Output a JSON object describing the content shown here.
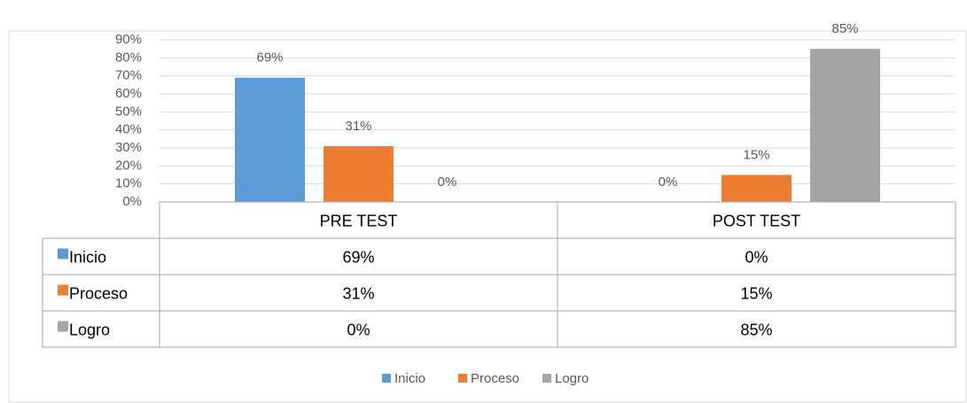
{
  "chart_data": {
    "type": "bar",
    "categories": [
      "PRE TEST",
      "POST TEST"
    ],
    "series": [
      {
        "name": "Inicio",
        "color": "#5b9bd5",
        "values": [
          69,
          0
        ],
        "value_labels": [
          "69%",
          "0%"
        ]
      },
      {
        "name": "Proceso",
        "color": "#ed7d31",
        "values": [
          31,
          15
        ],
        "value_labels": [
          "31%",
          "15%"
        ]
      },
      {
        "name": "Logro",
        "color": "#a5a5a5",
        "values": [
          0,
          85
        ],
        "value_labels": [
          "0%",
          "85%"
        ]
      }
    ],
    "ylim": [
      0,
      90
    ],
    "yticks": [
      {
        "value": 0,
        "label": "0%"
      },
      {
        "value": 10,
        "label": "10%"
      },
      {
        "value": 20,
        "label": "20%"
      },
      {
        "value": 30,
        "label": "30%"
      },
      {
        "value": 40,
        "label": "40%"
      },
      {
        "value": 50,
        "label": "50%"
      },
      {
        "value": 60,
        "label": "60%"
      },
      {
        "value": 70,
        "label": "70%"
      },
      {
        "value": 80,
        "label": "80%"
      },
      {
        "value": 90,
        "label": "90%"
      }
    ],
    "grid": true,
    "legend": "bottom",
    "data_table": true
  }
}
